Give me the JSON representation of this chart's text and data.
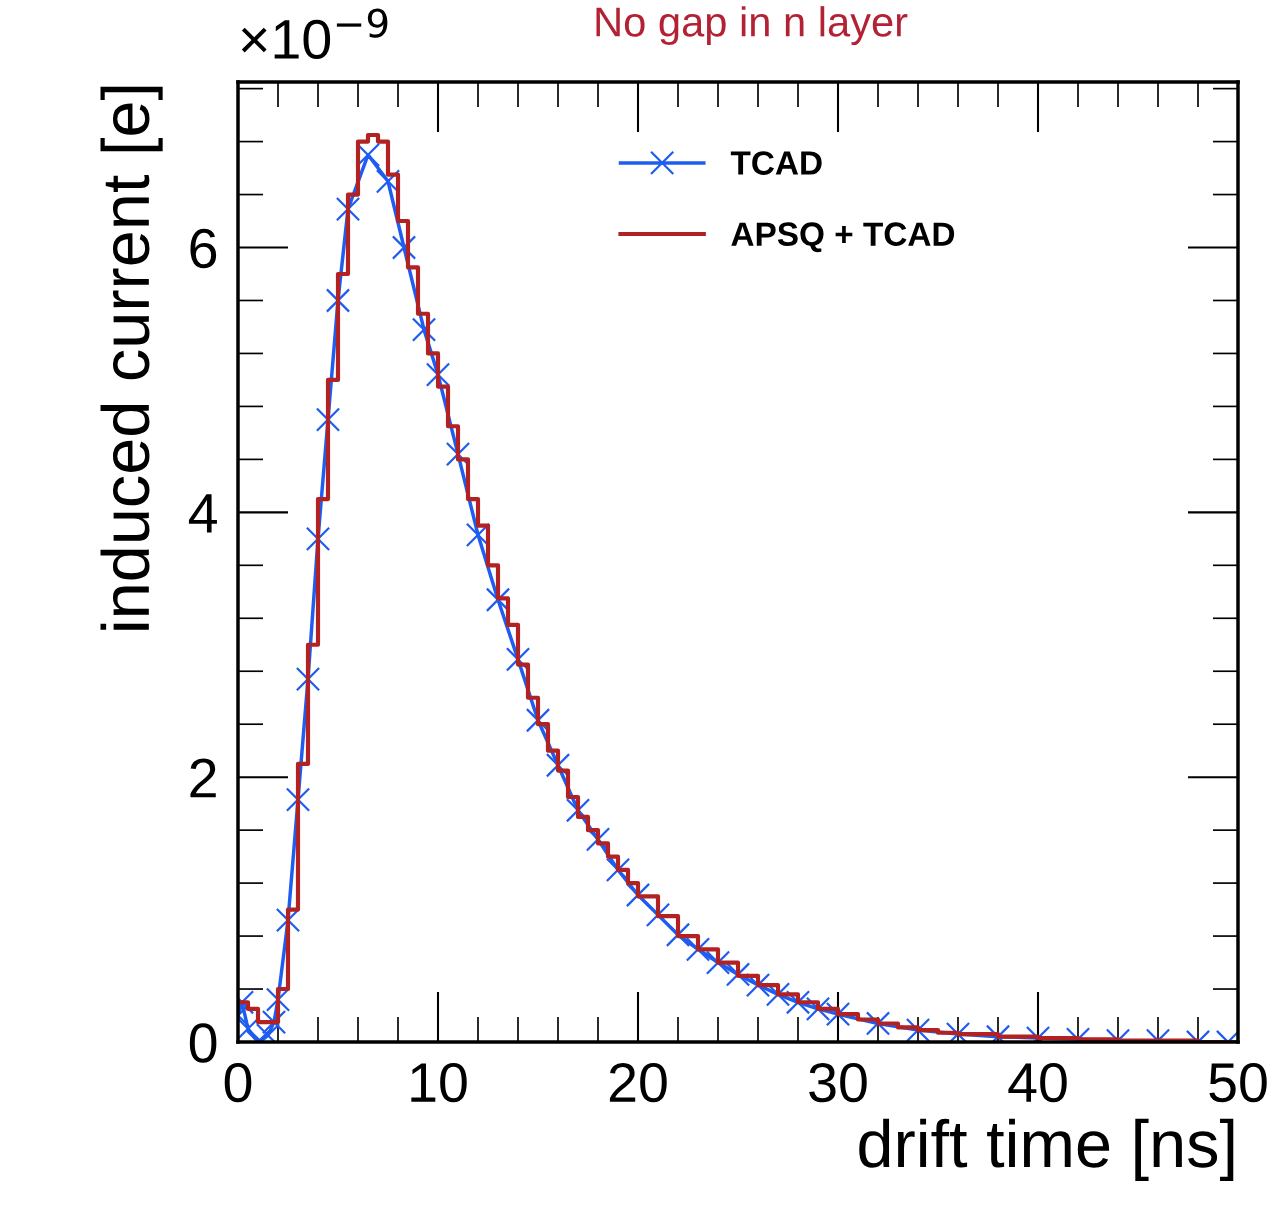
{
  "chart_data": {
    "type": "line",
    "title": "No gap in n layer",
    "xlabel": "drift time [ns]",
    "ylabel": "induced current [e]",
    "annotations": [
      "×10$^{−9}$"
    ],
    "xlim": [
      0,
      50
    ],
    "xticks": [
      0,
      10,
      20,
      30,
      40,
      50
    ],
    "ylim": [
      0,
      7.25
    ],
    "yticks": [
      0,
      2,
      4,
      6
    ],
    "legend": "top",
    "grid": false,
    "series": [
      {
        "name": "TCAD",
        "color": "#1f5cf0",
        "marker": "cross",
        "line_style": "solid",
        "x": [
          0,
          0.2,
          0.5,
          1.0,
          1.5,
          1.8,
          2,
          2.5,
          3,
          3.5,
          4,
          4.5,
          5,
          5.5,
          6.5,
          7.5,
          8.3,
          9.3,
          10,
          11,
          12,
          13,
          14,
          15,
          16,
          17,
          18,
          19,
          20,
          21,
          22,
          23,
          24,
          25,
          26,
          27,
          28,
          29,
          30,
          32,
          34,
          36,
          38,
          40,
          42,
          44,
          46,
          48,
          49.5
        ],
        "values": [
          0.2,
          0.3,
          0.1,
          0.0,
          0.05,
          0.15,
          0.32,
          0.92,
          1.83,
          2.74,
          3.8,
          4.7,
          5.6,
          6.29,
          6.7,
          6.5,
          6.0,
          5.38,
          5.04,
          4.44,
          3.83,
          3.34,
          2.89,
          2.43,
          2.09,
          1.75,
          1.53,
          1.3,
          1.11,
          0.96,
          0.81,
          0.7,
          0.6,
          0.51,
          0.43,
          0.36,
          0.3,
          0.25,
          0.21,
          0.14,
          0.09,
          0.06,
          0.04,
          0.03,
          0.02,
          0.01,
          0.01,
          0.0,
          0.0
        ]
      },
      {
        "name": "APSQ + TCAD",
        "type": "step",
        "color": "#b22222",
        "marker": "none",
        "line_style": "solid",
        "x": [
          0,
          0.5,
          1,
          1.5,
          2,
          2.5,
          3,
          3.5,
          4,
          4.5,
          5,
          5.5,
          6,
          6.5,
          7,
          7.5,
          8,
          8.5,
          9,
          9.5,
          10,
          10.5,
          11,
          11.5,
          12,
          12.5,
          13,
          13.5,
          14,
          14.5,
          15,
          15.5,
          16,
          16.5,
          17,
          17.5,
          18,
          18.5,
          19,
          19.5,
          20,
          21,
          22,
          23,
          24,
          25,
          26,
          27,
          28,
          29,
          30,
          31,
          32,
          33,
          34,
          35,
          36,
          38,
          40,
          42,
          44,
          46,
          48,
          50
        ],
        "values": [
          0.3,
          0.25,
          0.15,
          0.15,
          0.4,
          1.0,
          2.1,
          3.0,
          4.1,
          5.0,
          5.8,
          6.4,
          6.8,
          6.85,
          6.8,
          6.55,
          6.2,
          5.85,
          5.5,
          5.2,
          4.95,
          4.65,
          4.4,
          4.1,
          3.9,
          3.6,
          3.35,
          3.15,
          2.85,
          2.6,
          2.4,
          2.2,
          2.05,
          1.85,
          1.7,
          1.6,
          1.5,
          1.4,
          1.3,
          1.2,
          1.1,
          0.95,
          0.8,
          0.7,
          0.6,
          0.5,
          0.43,
          0.36,
          0.3,
          0.25,
          0.21,
          0.17,
          0.14,
          0.11,
          0.09,
          0.07,
          0.06,
          0.04,
          0.03,
          0.02,
          0.01,
          0.01,
          0.0,
          0.0
        ]
      }
    ]
  }
}
